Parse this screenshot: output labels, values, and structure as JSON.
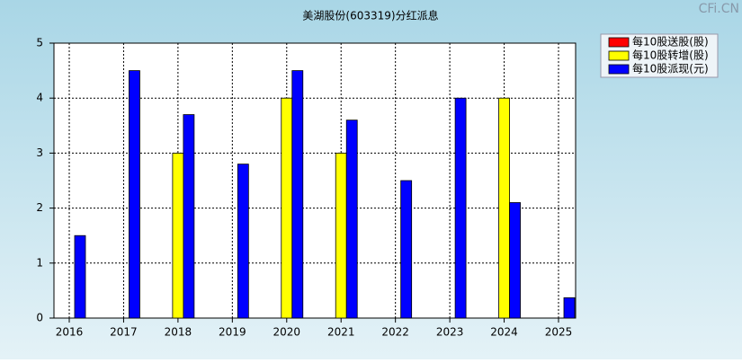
{
  "chart_data": {
    "type": "bar",
    "title": "美湖股份(603319)分红派息",
    "watermark": "CFi.CN",
    "categories": [
      "2016",
      "2017",
      "2018",
      "2019",
      "2020",
      "2021",
      "2022",
      "2023",
      "2024",
      "2025"
    ],
    "series": [
      {
        "name": "每10股送股(股)",
        "color": "#ff0000",
        "values": [
          null,
          null,
          null,
          null,
          null,
          null,
          null,
          null,
          null,
          null
        ]
      },
      {
        "name": "每10股转增(股)",
        "color": "#ffff00",
        "values": [
          null,
          null,
          3,
          null,
          4,
          3,
          null,
          null,
          4,
          null
        ]
      },
      {
        "name": "每10股派现(元)",
        "color": "#0000ff",
        "values": [
          1.5,
          4.5,
          3.7,
          2.8,
          4.5,
          3.6,
          2.5,
          4.0,
          2.1,
          0.37
        ]
      }
    ],
    "ylim": [
      0,
      5
    ],
    "yticks": [
      0,
      1,
      2,
      3,
      4,
      5
    ],
    "grid": true,
    "legend": "top-right"
  }
}
